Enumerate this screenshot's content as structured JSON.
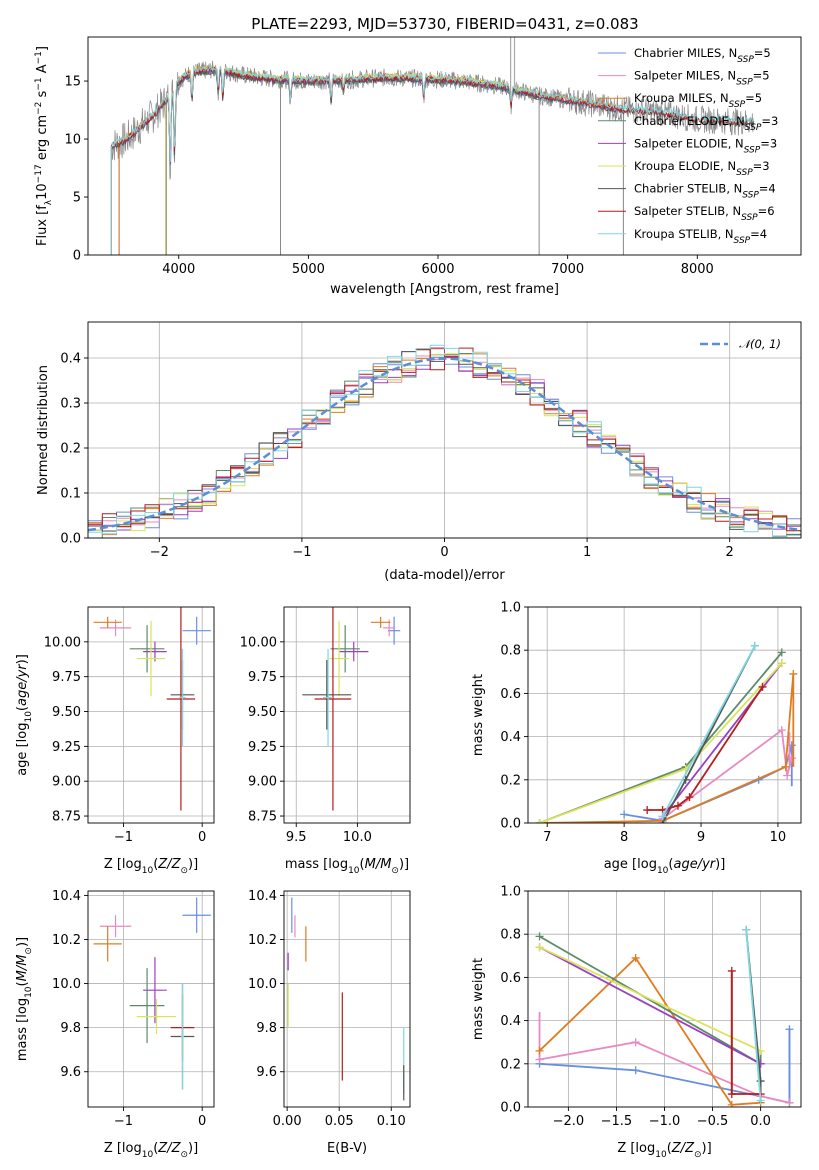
{
  "figure_title": "PLATE=2293, MJD=53730, FIBERID=0431, z=0.083",
  "colors": {
    "chabrier_miles": "#6a8fdc",
    "salpeter_miles": "#e78ac3",
    "kroupa_miles": "#e07b1f",
    "chabrier_elodie": "#5d8a68",
    "salpeter_elodie": "#9b3fc4",
    "kroupa_elodie": "#d9e35b",
    "chabrier_stelib": "#555555",
    "salpeter_stelib": "#b41e1e",
    "kroupa_stelib": "#7fd8e0",
    "data": "#888888",
    "normal": "#5a8fd6"
  },
  "chart_data": [
    {
      "id": "spectrum",
      "type": "line",
      "title": "PLATE=2293, MJD=53730, FIBERID=0431, z=0.083",
      "xlabel": "wavelength [Angstrom, rest frame]",
      "ylabel": "Flux [f_λ 10^-17 erg cm^-2 s^-1 A^-1]",
      "xlim": [
        3300,
        8800
      ],
      "ylim": [
        0,
        18.8
      ],
      "xticks": [
        4000,
        5000,
        6000,
        7000,
        8000
      ],
      "yticks": [
        0,
        5,
        10,
        15
      ],
      "legend_position": "top-right",
      "legend": [
        {
          "key": "chabrier_miles",
          "label": "Chabrier MILES, N",
          "sub": "SSP",
          "suffix": "=5"
        },
        {
          "key": "salpeter_miles",
          "label": "Salpeter MILES, N",
          "sub": "SSP",
          "suffix": "=5"
        },
        {
          "key": "kroupa_miles",
          "label": "Kroupa MILES, N",
          "sub": "SSP",
          "suffix": "=5"
        },
        {
          "key": "chabrier_elodie",
          "label": "Chabrier ELODIE, N",
          "sub": "SSP",
          "suffix": "=3"
        },
        {
          "key": "salpeter_elodie",
          "label": "Salpeter ELODIE, N",
          "sub": "SSP",
          "suffix": "=3"
        },
        {
          "key": "kroupa_elodie",
          "label": "Kroupa ELODIE, N",
          "sub": "SSP",
          "suffix": "=3"
        },
        {
          "key": "chabrier_stelib",
          "label": "Chabrier STELIB, N",
          "sub": "SSP",
          "suffix": "=4"
        },
        {
          "key": "salpeter_stelib",
          "label": "Salpeter STELIB, N",
          "sub": "SSP",
          "suffix": "=6"
        },
        {
          "key": "kroupa_stelib",
          "label": "Kroupa STELIB, N",
          "sub": "SSP",
          "suffix": "=4"
        }
      ],
      "continuum": {
        "x": [
          3400,
          3500,
          3600,
          3700,
          3800,
          3900,
          4000,
          4100,
          4300,
          4500,
          4700,
          5000,
          5300,
          5600,
          5900,
          6200,
          6500,
          6800,
          7100,
          7400,
          7700,
          8000,
          8300,
          8500
        ],
        "y": [
          9.0,
          9.5,
          10.0,
          11.0,
          12.0,
          13.3,
          15.0,
          15.8,
          16.0,
          15.5,
          15.2,
          15.0,
          15.1,
          15.3,
          15.2,
          15.0,
          14.5,
          13.7,
          13.2,
          12.6,
          12.3,
          11.7,
          11.5,
          11.5
        ]
      }
    },
    {
      "id": "residuals",
      "type": "bar",
      "xlabel": "(data-model)/error",
      "ylabel": "Normed distribution",
      "xlim": [
        -2.5,
        2.5
      ],
      "ylim": [
        0,
        0.48
      ],
      "xticks": [
        -2,
        -1,
        0,
        1,
        2
      ],
      "yticks": [
        0.0,
        0.1,
        0.2,
        0.3,
        0.4
      ],
      "bin_width": 0.1,
      "legend_label": "𝒩(0, 1)",
      "legend_position": "top-right"
    },
    {
      "id": "age_vs_Z",
      "type": "scatter",
      "xlabel": "Z [log10(Z/Z⊙)]",
      "ylabel": "age [log10(age/yr)]",
      "xlim": [
        -1.45,
        0.15
      ],
      "ylim": [
        8.7,
        10.25
      ],
      "xticks": [
        -1,
        0
      ],
      "yticks": [
        8.75,
        9.0,
        9.25,
        9.5,
        9.75,
        10.0
      ],
      "points": [
        {
          "key": "chabrier_miles",
          "x": -0.07,
          "y": 10.08,
          "xerr": 0.18,
          "yerr": 0.1
        },
        {
          "key": "salpeter_miles",
          "x": -1.1,
          "y": 10.1,
          "xerr": 0.2,
          "yerr": 0.06
        },
        {
          "key": "kroupa_miles",
          "x": -1.2,
          "y": 10.14,
          "xerr": 0.18,
          "yerr": 0.04
        },
        {
          "key": "chabrier_elodie",
          "x": -0.7,
          "y": 9.95,
          "xerr": 0.22,
          "yerr": 0.17
        },
        {
          "key": "salpeter_elodie",
          "x": -0.6,
          "y": 9.93,
          "xerr": 0.15,
          "yerr": 0.07
        },
        {
          "key": "kroupa_elodie",
          "x": -0.65,
          "y": 9.88,
          "xerr": 0.18,
          "yerr": 0.27
        },
        {
          "key": "chabrier_stelib",
          "x": -0.25,
          "y": 9.62,
          "xerr": 0.15,
          "yerr": 0.25
        },
        {
          "key": "salpeter_stelib",
          "x": -0.27,
          "y": 9.59,
          "xerr": 0.18,
          "yerr": 0.8
        },
        {
          "key": "kroupa_stelib",
          "x": -0.25,
          "y": 9.6,
          "xerr": 0.04,
          "yerr": 0.35
        }
      ]
    },
    {
      "id": "age_vs_mass",
      "type": "scatter",
      "xlabel": "mass [log10(M/M⊙)]",
      "ylabel": "",
      "xlim": [
        9.4,
        10.43
      ],
      "ylim": [
        8.7,
        10.25
      ],
      "xticks": [
        9.5,
        10.0
      ],
      "yticks": [
        8.75,
        9.0,
        9.25,
        9.5,
        9.75,
        10.0
      ],
      "points": [
        {
          "key": "chabrier_miles",
          "x": 10.3,
          "y": 10.08,
          "xerr": 0.05,
          "yerr": 0.1
        },
        {
          "key": "salpeter_miles",
          "x": 10.26,
          "y": 10.1,
          "xerr": 0.05,
          "yerr": 0.06
        },
        {
          "key": "kroupa_miles",
          "x": 10.19,
          "y": 10.14,
          "xerr": 0.08,
          "yerr": 0.04
        },
        {
          "key": "chabrier_elodie",
          "x": 9.9,
          "y": 9.95,
          "xerr": 0.12,
          "yerr": 0.17
        },
        {
          "key": "salpeter_elodie",
          "x": 9.97,
          "y": 9.93,
          "xerr": 0.12,
          "yerr": 0.07
        },
        {
          "key": "kroupa_elodie",
          "x": 9.85,
          "y": 9.88,
          "xerr": 0.08,
          "yerr": 0.27
        },
        {
          "key": "chabrier_stelib",
          "x": 9.75,
          "y": 9.62,
          "xerr": 0.2,
          "yerr": 0.25
        },
        {
          "key": "salpeter_stelib",
          "x": 9.8,
          "y": 9.59,
          "xerr": 0.15,
          "yerr": 0.8
        },
        {
          "key": "kroupa_stelib",
          "x": 9.76,
          "y": 9.6,
          "xerr": 0.04,
          "yerr": 0.35
        }
      ]
    },
    {
      "id": "weight_vs_age",
      "type": "line",
      "xlabel": "age [log10(age/yr)]",
      "ylabel": "mass weight",
      "xlim": [
        6.75,
        10.3
      ],
      "ylim": [
        0,
        1.0
      ],
      "xticks": [
        7,
        8,
        9,
        10
      ],
      "yticks": [
        0.0,
        0.2,
        0.4,
        0.6,
        0.8,
        1.0
      ],
      "series": [
        {
          "key": "chabrier_miles",
          "x": [
            8.0,
            8.5,
            9.75,
            10.1,
            10.18
          ],
          "y": [
            0.04,
            0.01,
            0.2,
            0.26,
            0.36
          ],
          "err": [
            [
              10.18,
              0.17,
              0.36
            ]
          ]
        },
        {
          "key": "salpeter_miles",
          "x": [
            8.5,
            10.05,
            10.12,
            10.18
          ],
          "y": [
            0.02,
            0.43,
            0.22,
            0.3
          ],
          "err": [
            [
              10.15,
              0.27,
              0.42
            ]
          ]
        },
        {
          "key": "kroupa_miles",
          "x": [
            6.9,
            8.5,
            10.1,
            10.2
          ],
          "y": [
            0.0,
            0.01,
            0.26,
            0.69
          ],
          "err": [
            [
              10.2,
              0.26,
              0.69
            ]
          ]
        },
        {
          "key": "chabrier_elodie",
          "x": [
            6.9,
            8.8,
            10.05
          ],
          "y": [
            0.0,
            0.26,
            0.79
          ],
          "err": []
        },
        {
          "key": "salpeter_elodie",
          "x": [
            8.5,
            10.05
          ],
          "y": [
            0.03,
            0.74
          ],
          "err": []
        },
        {
          "key": "kroupa_elodie",
          "x": [
            6.9,
            8.8,
            10.05
          ],
          "y": [
            0.0,
            0.25,
            0.74
          ],
          "err": []
        },
        {
          "key": "chabrier_stelib",
          "x": [
            8.5,
            8.8,
            9.7
          ],
          "y": [
            0.0,
            0.2,
            0.82
          ],
          "err": []
        },
        {
          "key": "salpeter_stelib",
          "x": [
            8.3,
            8.5,
            8.7,
            8.85,
            9.8
          ],
          "y": [
            0.06,
            0.06,
            0.08,
            0.12,
            0.63
          ],
          "err": []
        },
        {
          "key": "kroupa_stelib",
          "x": [
            8.5,
            9.7
          ],
          "y": [
            0.03,
            0.82
          ],
          "err": []
        }
      ]
    },
    {
      "id": "mass_vs_Z",
      "type": "scatter",
      "xlabel": "Z [log10(Z/Z⊙)]",
      "ylabel": "mass [log10(M/M⊙)]",
      "xlim": [
        -1.45,
        0.15
      ],
      "ylim": [
        9.44,
        10.42
      ],
      "xticks": [
        -1,
        0
      ],
      "yticks": [
        9.6,
        9.8,
        10.0,
        10.2,
        10.4
      ],
      "points": [
        {
          "key": "chabrier_miles",
          "x": -0.07,
          "y": 10.31,
          "xerr": 0.18,
          "yerr": 0.08
        },
        {
          "key": "salpeter_miles",
          "x": -1.1,
          "y": 10.26,
          "xerr": 0.2,
          "yerr": 0.05
        },
        {
          "key": "kroupa_miles",
          "x": -1.2,
          "y": 10.18,
          "xerr": 0.18,
          "yerr": 0.08
        },
        {
          "key": "chabrier_elodie",
          "x": -0.7,
          "y": 9.9,
          "xerr": 0.22,
          "yerr": 0.17
        },
        {
          "key": "salpeter_elodie",
          "x": -0.6,
          "y": 9.97,
          "xerr": 0.15,
          "yerr": 0.15
        },
        {
          "key": "kroupa_elodie",
          "x": -0.58,
          "y": 9.85,
          "xerr": 0.25,
          "yerr": 0.08
        },
        {
          "key": "chabrier_stelib",
          "x": -0.25,
          "y": 9.76,
          "xerr": 0.15,
          "yerr": 0.24
        },
        {
          "key": "salpeter_stelib",
          "x": -0.25,
          "y": 9.8,
          "xerr": 0.15,
          "yerr": 0.15
        },
        {
          "key": "kroupa_stelib",
          "x": -0.25,
          "y": 9.76,
          "xerr": 0.02,
          "yerr": 0.24
        }
      ]
    },
    {
      "id": "mass_vs_ebv",
      "type": "scatter",
      "xlabel": "E(B-V)",
      "ylabel": "",
      "xlim": [
        -0.003,
        0.118
      ],
      "ylim": [
        9.44,
        10.42
      ],
      "xticks": [
        0.0,
        0.05,
        0.1
      ],
      "yticks": [
        9.6,
        9.8,
        10.0,
        10.2,
        10.4
      ],
      "points": [
        {
          "key": "chabrier_miles",
          "x": 0.0045,
          "y": 10.31,
          "xerr": 0,
          "yerr": 0.08
        },
        {
          "key": "salpeter_miles",
          "x": 0.0075,
          "y": 10.26,
          "xerr": 0,
          "yerr": 0.05
        },
        {
          "key": "kroupa_miles",
          "x": 0.018,
          "y": 10.18,
          "xerr": 0,
          "yerr": 0.08
        },
        {
          "key": "salpeter_elodie",
          "x": 0.001,
          "y": 10.1,
          "xerr": 0,
          "yerr": 0.04
        },
        {
          "key": "kroupa_elodie",
          "x": 0.001,
          "y": 9.9,
          "xerr": 0,
          "yerr": 0.1
        },
        {
          "key": "salpeter_stelib",
          "x": 0.053,
          "y": 9.76,
          "xerr": 0,
          "yerr": 0.2
        },
        {
          "key": "kroupa_stelib",
          "x": 0.112,
          "y": 9.65,
          "xerr": 0,
          "yerr": 0.15
        },
        {
          "key": "chabrier_stelib",
          "x": 0.112,
          "y": 9.55,
          "xerr": 0,
          "yerr": 0.08
        }
      ]
    },
    {
      "id": "weight_vs_Z",
      "type": "line",
      "xlabel": "Z [log10(Z/Z⊙)]",
      "ylabel": "mass weight",
      "xlim": [
        -2.42,
        0.42
      ],
      "ylim": [
        0,
        1.0
      ],
      "xticks": [
        -2.0,
        -1.5,
        -1.0,
        -0.5,
        0.0
      ],
      "yticks": [
        0.0,
        0.2,
        0.4,
        0.6,
        0.8,
        1.0
      ],
      "series": [
        {
          "key": "chabrier_miles",
          "x": [
            -2.3,
            -1.3,
            0.0,
            0.3,
            0.3
          ],
          "y": [
            0.2,
            0.17,
            0.05,
            0.02,
            0.36
          ],
          "err": [
            [
              0.3,
              0.02,
              0.36
            ]
          ]
        },
        {
          "key": "salpeter_miles",
          "x": [
            -2.3,
            -1.3,
            0.0,
            0.3
          ],
          "y": [
            0.22,
            0.3,
            0.05,
            0.02
          ],
          "err": [
            [
              -2.3,
              0.22,
              0.44
            ]
          ]
        },
        {
          "key": "kroupa_miles",
          "x": [
            -2.3,
            -1.3,
            -0.3,
            0.0
          ],
          "y": [
            0.26,
            0.69,
            0.01,
            0.02
          ],
          "err": []
        },
        {
          "key": "chabrier_elodie",
          "x": [
            -2.3,
            0.0
          ],
          "y": [
            0.79,
            0.2
          ],
          "err": [
            [
              0.0,
              0.2,
              0.26
            ]
          ]
        },
        {
          "key": "salpeter_elodie",
          "x": [
            -2.3,
            0.0
          ],
          "y": [
            0.74,
            0.2
          ],
          "err": []
        },
        {
          "key": "kroupa_elodie",
          "x": [
            -2.3,
            0.0
          ],
          "y": [
            0.74,
            0.26
          ],
          "err": []
        },
        {
          "key": "chabrier_stelib",
          "x": [
            -0.15,
            0.0
          ],
          "y": [
            0.82,
            0.12
          ],
          "err": [
            [
              0.0,
              0.02,
              0.12
            ]
          ]
        },
        {
          "key": "salpeter_stelib",
          "x": [
            -0.3,
            -0.3,
            0.0
          ],
          "y": [
            0.63,
            0.06,
            0.06
          ],
          "err": [
            [
              -0.3,
              0.06,
              0.63
            ]
          ]
        },
        {
          "key": "kroupa_stelib",
          "x": [
            -0.15,
            0.0
          ],
          "y": [
            0.82,
            0.03
          ],
          "err": []
        }
      ]
    }
  ]
}
